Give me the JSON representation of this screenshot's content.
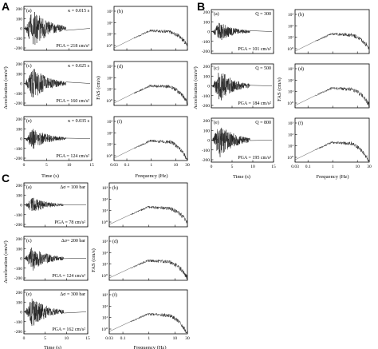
{
  "figure": {
    "groups": [
      "A",
      "B",
      "C"
    ],
    "left_ylabel": "Acceleration (cm/s²)",
    "right_ylabel": "FAS (cm/s)",
    "time_xlabel": "Time (s)",
    "freq_xlabel": "Frequency (Hz)",
    "time_ticks": [
      "0",
      "5",
      "10",
      "15"
    ],
    "acc_ticks": [
      "200",
      "100",
      "0",
      "-100",
      "-200"
    ],
    "freq_ticks": [
      "0.03",
      "0.1",
      "1",
      "10",
      "30"
    ],
    "fas_ticks": [
      "10³",
      "10²",
      "10¹",
      "10⁰"
    ]
  },
  "chart_data": [
    {
      "type": "line",
      "group": "A",
      "kind": "acceleration time series",
      "panels": [
        {
          "letter": "(a)",
          "param": "κ = 0.015 s",
          "pga": "PGA = 218 cm/s²"
        },
        {
          "letter": "(c)",
          "param": "κ = 0.025 s",
          "pga": "PGA = 160 cm/s²"
        },
        {
          "letter": "(e)",
          "param": "κ = 0.035 s",
          "pga": "PGA = 124 cm/s²"
        }
      ],
      "xlabel": "Time (s)",
      "ylabel": "Acceleration (cm/s²)",
      "xlim": [
        0,
        15
      ],
      "ylim": [
        -200,
        200
      ]
    },
    {
      "type": "line",
      "group": "A",
      "kind": "Fourier amplitude spectrum",
      "panels": [
        {
          "letter": "(b)"
        },
        {
          "letter": "(d)"
        },
        {
          "letter": "(f)"
        }
      ],
      "xlabel": "Frequency (Hz)",
      "ylabel": "FAS (cm/s)",
      "xscale": "log",
      "yscale": "log",
      "xlim": [
        0.03,
        30
      ]
    },
    {
      "type": "line",
      "group": "B",
      "kind": "acceleration time series",
      "panels": [
        {
          "letter": "(a)",
          "param": "Q = 300",
          "pga": "PGA = 101 cm/s²"
        },
        {
          "letter": "(c)",
          "param": "Q = 500",
          "pga": "PGA = 184 cm/s²"
        },
        {
          "letter": "(e)",
          "param": "Q = 800",
          "pga": "PGA = 195 cm/s²"
        }
      ],
      "xlabel": "Time (s)",
      "ylabel": "Acceleration (cm/s²)",
      "xlim": [
        0,
        15
      ],
      "ylim": [
        -200,
        200
      ]
    },
    {
      "type": "line",
      "group": "B",
      "kind": "Fourier amplitude spectrum",
      "panels": [
        {
          "letter": "(b)"
        },
        {
          "letter": "(d)"
        },
        {
          "letter": "(f)"
        }
      ],
      "xlabel": "Frequency (Hz)",
      "ylabel": "FAS (cm/s)",
      "xscale": "log",
      "yscale": "log",
      "xlim": [
        0.03,
        30
      ]
    },
    {
      "type": "line",
      "group": "C",
      "kind": "acceleration time series",
      "panels": [
        {
          "letter": "(a)",
          "param": "Δσ = 100 bar",
          "pga": "PGA = 78 cm/s²"
        },
        {
          "letter": "(c)",
          "param": "Δσ= 200 bar",
          "pga": "PGA = 124 cm/s²"
        },
        {
          "letter": "(e)",
          "param": "Δσ = 300 bar",
          "pga": "PGA = 162 cm/s²"
        }
      ],
      "xlabel": "Time (s)",
      "ylabel": "Acceleration (cm/s²)",
      "xlim": [
        0,
        15
      ],
      "ylim": [
        -200,
        200
      ]
    },
    {
      "type": "line",
      "group": "C",
      "kind": "Fourier amplitude spectrum",
      "panels": [
        {
          "letter": "(b)"
        },
        {
          "letter": "(d)"
        },
        {
          "letter": "(f)"
        }
      ],
      "xlabel": "Frequency (Hz)",
      "ylabel": "FAS (cm/s)",
      "xscale": "log",
      "yscale": "log",
      "xlim": [
        0.03,
        30
      ]
    }
  ]
}
